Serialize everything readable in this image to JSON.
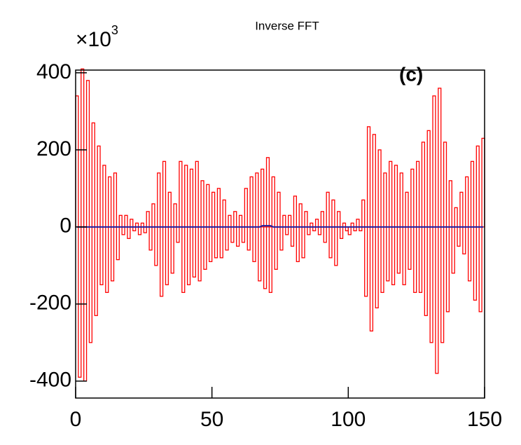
{
  "chart_data": {
    "type": "histogram",
    "title": "Inverse FFT",
    "annotation": "(c)",
    "y_multiplier": "×10",
    "y_multiplier_exponent": "3",
    "bins": [
      0,
      1,
      2,
      3,
      4,
      5,
      6,
      7,
      8,
      9,
      10,
      11,
      12,
      13,
      14,
      15,
      16,
      17,
      18,
      19,
      20,
      21,
      22,
      23,
      24,
      25,
      26,
      27,
      28,
      29,
      30,
      31,
      32,
      33,
      34,
      35,
      36,
      37,
      38,
      39,
      40,
      41,
      42,
      43,
      44,
      45,
      46,
      47,
      48,
      49,
      50,
      51,
      52,
      53,
      54,
      55,
      56,
      57,
      58,
      59,
      60,
      61,
      62,
      63,
      64,
      65,
      66,
      67,
      68,
      69,
      70,
      71,
      72,
      73,
      74,
      75,
      76,
      77,
      78,
      79,
      80,
      81,
      82,
      83,
      84,
      85,
      86,
      87,
      88,
      89,
      90,
      91,
      92,
      93,
      94,
      95,
      96,
      97,
      98,
      99,
      100,
      101,
      102,
      103,
      104,
      105,
      106,
      107,
      108,
      109,
      110,
      111,
      112,
      113,
      114,
      115,
      116,
      117,
      118,
      119,
      120,
      121,
      122,
      123,
      124,
      125,
      126,
      127,
      128,
      129,
      130,
      131,
      132,
      133,
      134,
      135,
      136,
      137,
      138,
      139,
      140,
      141,
      142,
      143,
      144,
      145,
      146,
      147,
      148,
      149,
      150
    ],
    "series": [
      {
        "color": "#ff0000",
        "values": [
          340,
          -390,
          410,
          -400,
          380,
          -300,
          270,
          -230,
          210,
          -150,
          160,
          -170,
          130,
          -140,
          140,
          -85,
          30,
          -20,
          30,
          -30,
          20,
          -10,
          10,
          -20,
          10,
          -15,
          40,
          -60,
          60,
          -100,
          140,
          -180,
          170,
          -150,
          90,
          -120,
          60,
          -40,
          170,
          -170,
          160,
          -150,
          150,
          -130,
          170,
          -140,
          120,
          -110,
          110,
          -90,
          90,
          -80,
          100,
          -80,
          70,
          -60,
          30,
          -40,
          40,
          -50,
          30,
          -40,
          100,
          -60,
          130,
          -90,
          140,
          -140,
          150,
          -160,
          180,
          -170,
          130,
          -110,
          90,
          -60,
          30,
          -20,
          30,
          -50,
          80,
          -90,
          60,
          -80,
          40,
          -20,
          10,
          -10,
          20,
          -20,
          40,
          -40,
          90,
          -80,
          70,
          -100,
          40,
          -30,
          10,
          -10,
          -20,
          10,
          -10,
          20,
          -10,
          70,
          -180,
          260,
          -270,
          240,
          -210,
          200,
          -170,
          140,
          -140,
          170,
          -150,
          160,
          -120,
          140,
          -150,
          90,
          -110,
          150,
          -170,
          170,
          -170,
          220,
          -230,
          250,
          -300,
          340,
          -380,
          360,
          -300,
          220,
          -220,
          120,
          -120,
          50,
          -50,
          90,
          -70,
          130,
          -140,
          170,
          -190,
          210,
          -220,
          230
        ]
      },
      {
        "color": "#1f1fa0",
        "values": [
          0,
          0,
          0,
          0,
          0,
          0,
          0,
          0,
          0,
          0,
          0,
          0,
          0,
          0,
          0,
          0,
          0,
          0,
          0,
          0,
          0,
          0,
          0,
          0,
          0,
          0,
          0,
          0,
          0,
          0,
          0,
          0,
          0,
          0,
          0,
          0,
          0,
          0,
          0,
          0,
          0,
          0,
          0,
          0,
          0,
          0,
          0,
          0,
          0,
          0,
          0,
          0,
          0,
          0,
          0,
          0,
          0,
          0,
          0,
          0,
          0,
          0,
          0,
          0,
          0,
          0,
          0,
          0,
          3,
          3,
          3,
          3,
          0,
          0,
          0,
          0,
          0,
          0,
          0,
          0,
          0,
          0,
          0,
          0,
          0,
          0,
          0,
          0,
          0,
          0,
          0,
          0,
          0,
          0,
          0,
          0,
          0,
          0,
          0,
          0,
          0,
          0,
          0,
          0,
          0,
          0,
          0,
          0,
          0,
          0,
          0,
          0,
          0,
          0,
          0,
          0,
          0,
          0,
          0,
          0,
          0,
          0,
          0,
          0,
          0,
          0,
          0,
          0,
          0,
          0,
          0,
          0,
          0,
          0,
          0,
          0,
          0,
          0,
          0,
          0,
          0,
          0,
          0,
          0,
          0,
          0,
          0,
          0,
          0,
          0
        ]
      }
    ],
    "xlim": [
      0,
      150
    ],
    "xticks": [
      0,
      50,
      100,
      150
    ],
    "ylim": [
      -444,
      407
    ],
    "yticks": [
      -400,
      -200,
      0,
      200,
      400
    ]
  }
}
